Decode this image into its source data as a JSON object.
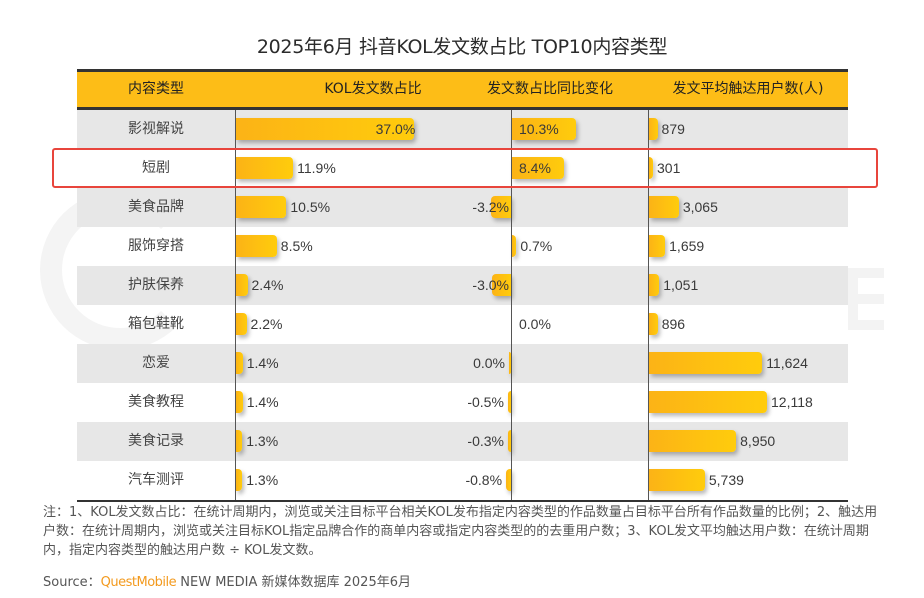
{
  "title": "2025年6月 抖音KOL发文数占比 TOP10内容类型",
  "colors": {
    "header_bg": "#fdbd17",
    "bar_start": "#fcb316",
    "bar_end": "#ffcc0c",
    "highlight": "#e8453c",
    "row_shade": "#e7e7e7",
    "source_brand": "#f39a1e"
  },
  "highlighted_row": "短剧",
  "chart_data": {
    "type": "table",
    "title": "2025年6月 抖音KOL发文数占比 TOP10内容类型",
    "columns": [
      "内容类型",
      "KOL发文数占比",
      "发文数占比同比变化",
      "发文平均触达用户数(人)"
    ],
    "rows": [
      {
        "category": "影视解说",
        "share": 37.0,
        "share_label": "37.0%",
        "yoy": 10.3,
        "yoy_label": "10.3%",
        "avg_reach": 879,
        "avg_reach_label": "879"
      },
      {
        "category": "短剧",
        "share": 11.9,
        "share_label": "11.9%",
        "yoy": 8.4,
        "yoy_label": "8.4%",
        "avg_reach": 301,
        "avg_reach_label": "301"
      },
      {
        "category": "美食品牌",
        "share": 10.5,
        "share_label": "10.5%",
        "yoy": -3.2,
        "yoy_label": "-3.2%",
        "avg_reach": 3065,
        "avg_reach_label": "3,065"
      },
      {
        "category": "服饰穿搭",
        "share": 8.5,
        "share_label": "8.5%",
        "yoy": 0.7,
        "yoy_label": "0.7%",
        "avg_reach": 1659,
        "avg_reach_label": "1,659"
      },
      {
        "category": "护肤保养",
        "share": 2.4,
        "share_label": "2.4%",
        "yoy": -3.0,
        "yoy_label": "-3.0%",
        "avg_reach": 1051,
        "avg_reach_label": "1,051"
      },
      {
        "category": "箱包鞋靴",
        "share": 2.2,
        "share_label": "2.2%",
        "yoy": 0.0,
        "yoy_label": "0.0%",
        "avg_reach": 896,
        "avg_reach_label": "896"
      },
      {
        "category": "恋爱",
        "share": 1.4,
        "share_label": "1.4%",
        "yoy": 0.0,
        "yoy_label": "0.0%",
        "avg_reach": 11624,
        "avg_reach_label": "11,624"
      },
      {
        "category": "美食教程",
        "share": 1.4,
        "share_label": "1.4%",
        "yoy": -0.5,
        "yoy_label": "-0.5%",
        "avg_reach": 12118,
        "avg_reach_label": "12,118"
      },
      {
        "category": "美食记录",
        "share": 1.3,
        "share_label": "1.3%",
        "yoy": -0.3,
        "yoy_label": "-0.3%",
        "avg_reach": 8950,
        "avg_reach_label": "8,950"
      },
      {
        "category": "汽车测评",
        "share": 1.3,
        "share_label": "1.3%",
        "yoy": -0.8,
        "yoy_label": "-0.8%",
        "avg_reach": 5739,
        "avg_reach_label": "5,739"
      }
    ],
    "units": {
      "share": "%",
      "yoy": "percentage points",
      "avg_reach": "人"
    }
  },
  "notes": "注：1、KOL发文数占比：在统计周期内，浏览或关注目标平台相关KOL发布指定内容类型的作品数量占目标平台所有作品数量的比例；2、触达用户数：在统计周期内，浏览或关注目标KOL指定品牌合作的商单内容或指定内容类型的的去重用户数；3、KOL发文平均触达用户数：在统计周期内，指定内容类型的触达用户数 ÷ KOL发文数。",
  "source": {
    "prefix": "Source：",
    "brand": "QuestMobile",
    "suffix": " NEW MEDIA 新媒体数据库 2025年6月"
  }
}
